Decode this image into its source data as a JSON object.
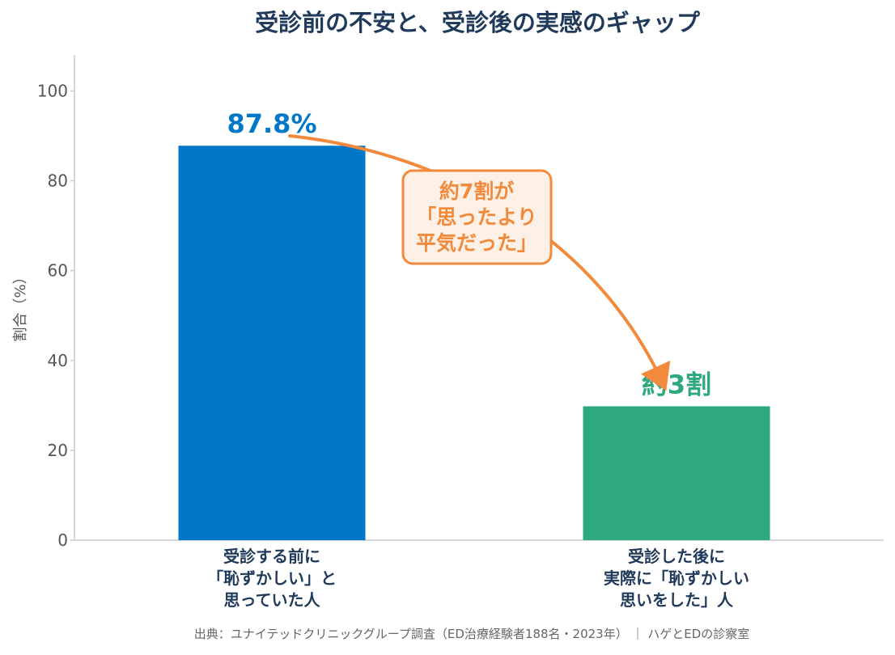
{
  "chart_data": {
    "type": "bar",
    "title": "受診前の不安と、受診後の実感のギャップ",
    "ylabel": "割合（%）",
    "ylim": [
      0,
      108
    ],
    "yticks": [
      0,
      20,
      40,
      60,
      80,
      100
    ],
    "grid": false,
    "categories": [
      [
        "受診する前に",
        "「恥ずかしい」と",
        "思っていた人"
      ],
      [
        "受診した後に",
        "実際に「恥ずかしい",
        "思いをした」人"
      ]
    ],
    "values": [
      87.8,
      29.8
    ],
    "colors": [
      "#0077c8",
      "#2ea87e"
    ],
    "data_labels": [
      "87.8%",
      "約3割"
    ],
    "annotation": {
      "lines": [
        "約7割が",
        "「思ったより",
        "平気だった」"
      ],
      "color": "#f28a3c",
      "fill": "#fdf0e6"
    },
    "source": "出典：ユナイテッドクリニックグループ調査（ED治療経験者188名・2023年） ｜ ハゲとEDの診察室"
  }
}
